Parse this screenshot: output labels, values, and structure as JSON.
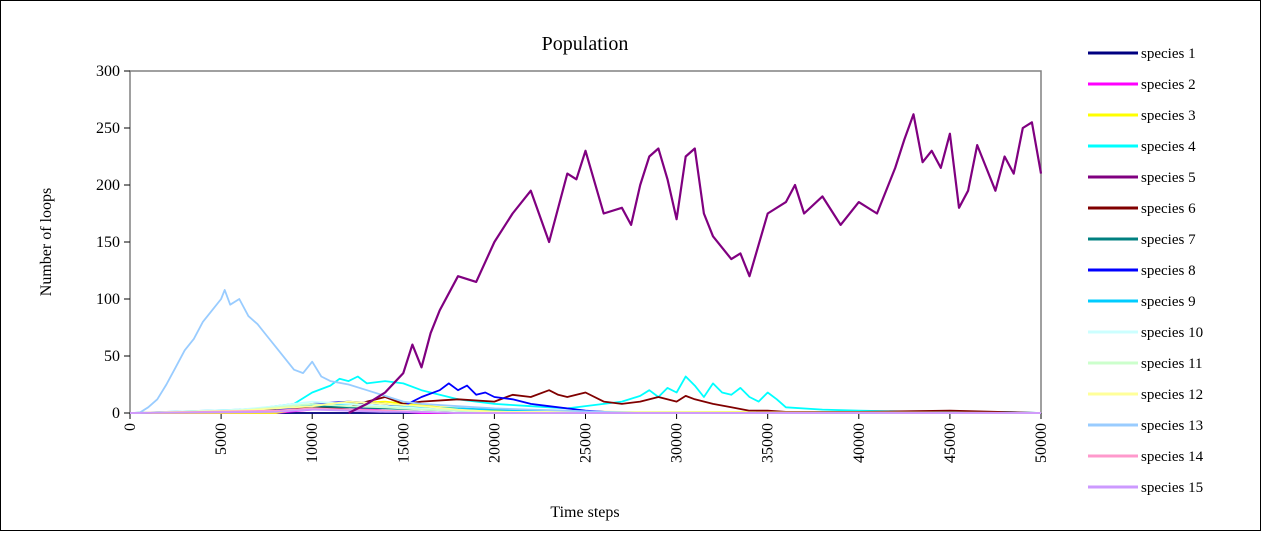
{
  "chart_data": {
    "type": "line",
    "title": "Population",
    "xlabel": "Time steps",
    "ylabel": "Number of loops",
    "xlim": [
      0,
      50000
    ],
    "ylim": [
      0,
      300
    ],
    "xticks": [
      0,
      5000,
      10000,
      15000,
      20000,
      25000,
      30000,
      35000,
      40000,
      45000,
      50000
    ],
    "yticks": [
      0,
      50,
      100,
      150,
      200,
      250,
      300
    ],
    "grid": false,
    "legend_position": "right",
    "series": [
      {
        "name": "species 1",
        "color": "#000080",
        "x": [
          0,
          10000,
          20000,
          30000,
          40000,
          50000
        ],
        "y": [
          0,
          0,
          0,
          0,
          0,
          0
        ]
      },
      {
        "name": "species 2",
        "color": "#ff00ff",
        "x": [
          0,
          8000,
          10000,
          12000,
          14000,
          16000,
          50000
        ],
        "y": [
          0,
          0,
          3,
          5,
          2,
          0,
          0
        ]
      },
      {
        "name": "species 3",
        "color": "#ffff00",
        "x": [
          0,
          8000,
          11000,
          14000,
          17000,
          20000,
          27000,
          32000,
          50000
        ],
        "y": [
          0,
          0,
          8,
          10,
          5,
          2,
          1,
          1,
          0
        ]
      },
      {
        "name": "species 4",
        "color": "#00ffff",
        "x": [
          0,
          6000,
          9000,
          10000,
          11000,
          11500,
          12000,
          12500,
          13000,
          14000,
          15000,
          16000,
          17000,
          18000,
          20000,
          22000,
          24000,
          26000,
          27000,
          28000,
          28500,
          29000,
          29500,
          30000,
          30500,
          31000,
          31500,
          32000,
          32500,
          33000,
          33500,
          34000,
          34500,
          35000,
          35500,
          36000,
          38000,
          40000,
          44000,
          48000,
          50000
        ],
        "y": [
          0,
          2,
          8,
          18,
          24,
          30,
          28,
          32,
          26,
          28,
          26,
          20,
          16,
          12,
          8,
          6,
          4,
          8,
          10,
          15,
          20,
          14,
          22,
          18,
          32,
          24,
          14,
          26,
          18,
          16,
          22,
          14,
          10,
          18,
          12,
          5,
          3,
          2,
          1,
          1,
          0
        ]
      },
      {
        "name": "species 5",
        "color": "#800080",
        "x": [
          12000,
          13000,
          14000,
          15000,
          15500,
          16000,
          16500,
          17000,
          18000,
          19000,
          20000,
          21000,
          22000,
          23000,
          24000,
          24500,
          25000,
          26000,
          27000,
          27500,
          28000,
          28500,
          29000,
          29500,
          30000,
          30500,
          31000,
          31500,
          32000,
          33000,
          33500,
          34000,
          35000,
          36000,
          36500,
          37000,
          38000,
          39000,
          40000,
          41000,
          42000,
          42500,
          43000,
          43500,
          44000,
          44500,
          45000,
          45500,
          46000,
          46500,
          47000,
          47500,
          48000,
          48500,
          49000,
          49500,
          50000
        ],
        "y": [
          0,
          8,
          18,
          35,
          60,
          40,
          70,
          90,
          120,
          115,
          150,
          175,
          195,
          150,
          210,
          205,
          230,
          175,
          180,
          165,
          200,
          225,
          232,
          205,
          170,
          225,
          232,
          175,
          155,
          135,
          140,
          120,
          175,
          185,
          200,
          175,
          190,
          165,
          185,
          175,
          215,
          240,
          262,
          220,
          230,
          215,
          245,
          180,
          195,
          235,
          215,
          195,
          225,
          210,
          250,
          255,
          210
        ]
      },
      {
        "name": "species 6",
        "color": "#800000",
        "x": [
          0,
          12000,
          13000,
          14000,
          15000,
          16000,
          18000,
          20000,
          21000,
          22000,
          23000,
          23500,
          24000,
          25000,
          26000,
          27000,
          28000,
          29000,
          30000,
          30500,
          31000,
          32000,
          33000,
          34000,
          35000,
          36000,
          40000,
          45000,
          50000
        ],
        "y": [
          0,
          5,
          10,
          14,
          8,
          10,
          12,
          10,
          16,
          14,
          20,
          16,
          14,
          18,
          10,
          8,
          10,
          14,
          10,
          15,
          12,
          8,
          5,
          2,
          2,
          1,
          1,
          2,
          0
        ]
      },
      {
        "name": "species 7",
        "color": "#008080",
        "x": [
          0,
          6000,
          8000,
          10000,
          12000,
          14000,
          16000,
          18000,
          20000,
          22000,
          50000
        ],
        "y": [
          0,
          2,
          4,
          6,
          5,
          4,
          3,
          2,
          1,
          0,
          0
        ]
      },
      {
        "name": "species 8",
        "color": "#0000ff",
        "x": [
          0,
          8000,
          10000,
          12000,
          14000,
          15000,
          16000,
          17000,
          17500,
          18000,
          18500,
          19000,
          19500,
          20000,
          21000,
          22000,
          23000,
          24000,
          25000,
          27000,
          50000
        ],
        "y": [
          0,
          2,
          8,
          10,
          8,
          6,
          14,
          20,
          26,
          20,
          24,
          16,
          18,
          14,
          12,
          8,
          6,
          4,
          2,
          0,
          0
        ]
      },
      {
        "name": "species 9",
        "color": "#00ccff",
        "x": [
          0,
          6000,
          8000,
          10000,
          12000,
          14000,
          16000,
          18000,
          20000,
          22000,
          24000,
          26000,
          50000
        ],
        "y": [
          0,
          3,
          5,
          7,
          8,
          6,
          5,
          4,
          3,
          2,
          1,
          0,
          0
        ]
      },
      {
        "name": "species 10",
        "color": "#ccffff",
        "x": [
          0,
          6000,
          8000,
          10000,
          12000,
          14000,
          16000,
          18000,
          20000,
          50000
        ],
        "y": [
          0,
          3,
          6,
          10,
          8,
          6,
          4,
          2,
          1,
          0
        ]
      },
      {
        "name": "species 11",
        "color": "#ccffcc",
        "x": [
          0,
          6000,
          8000,
          10000,
          12000,
          14000,
          16000,
          18000,
          20000,
          50000
        ],
        "y": [
          0,
          2,
          5,
          8,
          6,
          5,
          3,
          2,
          1,
          0
        ]
      },
      {
        "name": "species 12",
        "color": "#ffff99",
        "x": [
          0,
          6000,
          8000,
          10000,
          12000,
          14000,
          16000,
          18000,
          20000,
          50000
        ],
        "y": [
          0,
          2,
          4,
          6,
          10,
          8,
          6,
          3,
          1,
          0
        ]
      },
      {
        "name": "species 13",
        "color": "#99ccff",
        "x": [
          0,
          500,
          1000,
          1500,
          2000,
          2500,
          3000,
          3500,
          4000,
          4500,
          5000,
          5200,
          5500,
          6000,
          6500,
          7000,
          7500,
          8000,
          8500,
          9000,
          9500,
          10000,
          10500,
          11000,
          12000,
          13000,
          14000,
          15000,
          16000,
          18000,
          20000,
          22000,
          24000,
          26000,
          28000,
          30000,
          50000
        ],
        "y": [
          0,
          0,
          5,
          12,
          25,
          40,
          55,
          65,
          80,
          90,
          100,
          108,
          95,
          100,
          85,
          78,
          68,
          58,
          48,
          38,
          35,
          45,
          32,
          28,
          25,
          20,
          15,
          10,
          8,
          6,
          4,
          3,
          2,
          1,
          0,
          0,
          0
        ]
      },
      {
        "name": "species 14",
        "color": "#ff99cc",
        "x": [
          0,
          8000,
          10000,
          12000,
          14000,
          16000,
          18000,
          50000
        ],
        "y": [
          0,
          2,
          4,
          3,
          2,
          1,
          0,
          0
        ]
      },
      {
        "name": "species 15",
        "color": "#cc99ff",
        "x": [
          0,
          8000,
          10000,
          12000,
          14000,
          16000,
          18000,
          50000
        ],
        "y": [
          0,
          1,
          3,
          2,
          1,
          1,
          0,
          0
        ]
      }
    ]
  }
}
